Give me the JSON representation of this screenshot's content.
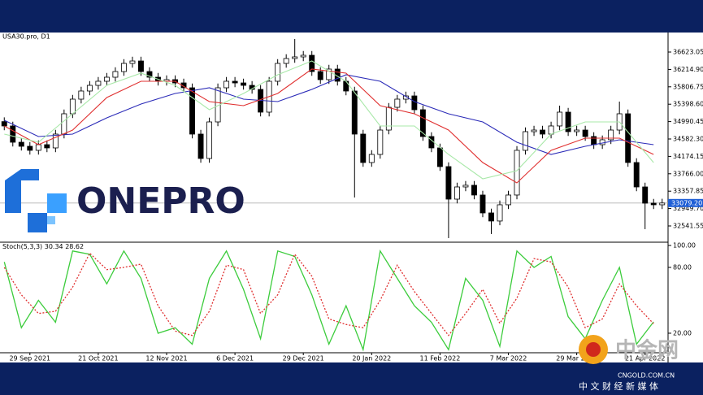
{
  "chart_data": {
    "type": "candlestick",
    "title": "USA30.pro, D1",
    "xlim": [
      -0.5,
      77.5
    ],
    "xticks": [
      {
        "value": 3,
        "label": "29 Sep 2021"
      },
      {
        "value": 11,
        "label": "21 Oct 2021"
      },
      {
        "value": 19,
        "label": "12 Nov 2021"
      },
      {
        "value": 27,
        "label": "6 Dec 2021"
      },
      {
        "value": 35,
        "label": "29 Dec 2021"
      },
      {
        "value": 43,
        "label": "20 Jan 2022"
      },
      {
        "value": 51,
        "label": "11 Feb 2022"
      },
      {
        "value": 59,
        "label": "7 Mar 2022"
      },
      {
        "value": 67,
        "label": "29 Mar 2022"
      },
      {
        "value": 75,
        "label": "21 Apr 2022"
      }
    ],
    "open": [
      34990,
      34888,
      34506,
      34411,
      34316,
      34449,
      34373,
      34697,
      35174,
      35517,
      35708,
      35841,
      35937,
      36032,
      36165,
      36356,
      36413,
      36165,
      36032,
      35937,
      35975,
      35898,
      35784,
      34697,
      34125,
      34983,
      35784,
      35937,
      35898,
      35841,
      35746,
      35212,
      35937,
      36356,
      36471,
      36509,
      36547,
      36165,
      35975,
      36223,
      35937,
      35708,
      34697,
      34030,
      34220,
      34792,
      35326,
      35517,
      35593,
      35269,
      34640,
      34373,
      33934,
      33171,
      33457,
      33496,
      33267,
      32847,
      32657,
      33038,
      33267,
      34316,
      34754,
      34792,
      34697,
      34888,
      35212,
      34754,
      34792,
      34640,
      34449,
      34564,
      34792,
      35174,
      34030,
      33457,
      33076,
      33038
    ],
    "high": [
      35090,
      34988,
      34606,
      34511,
      34549,
      34549,
      34797,
      35274,
      35617,
      35808,
      35941,
      36037,
      36132,
      36265,
      36456,
      36513,
      36513,
      36265,
      36132,
      36075,
      36075,
      35998,
      35884,
      34797,
      35083,
      35884,
      36037,
      36037,
      35998,
      35941,
      35846,
      36037,
      36456,
      36571,
      36928,
      36647,
      36647,
      36265,
      36323,
      36323,
      36037,
      35808,
      34797,
      34320,
      34892,
      35426,
      35617,
      35693,
      35693,
      35369,
      34740,
      34473,
      34034,
      33557,
      33596,
      33596,
      33367,
      32947,
      33138,
      33367,
      34416,
      34854,
      34892,
      34892,
      34988,
      35365,
      35312,
      34892,
      34892,
      34740,
      34664,
      34892,
      35460,
      35274,
      34130,
      33557,
      33176,
      33179
    ],
    "low": [
      34788,
      34406,
      34311,
      34216,
      34216,
      34273,
      34273,
      34597,
      35074,
      35417,
      35608,
      35741,
      35837,
      35932,
      36065,
      36256,
      36065,
      35932,
      35837,
      35837,
      35798,
      35684,
      34597,
      34025,
      34025,
      34883,
      35684,
      35798,
      35741,
      35646,
      35112,
      35112,
      35837,
      36256,
      36371,
      36409,
      36065,
      35875,
      35875,
      35837,
      35608,
      33209,
      33930,
      33930,
      34120,
      34692,
      35226,
      35417,
      35169,
      34540,
      34273,
      33834,
      32256,
      33071,
      33357,
      33167,
      32747,
      32351,
      32557,
      32938,
      33167,
      34216,
      34654,
      34597,
      34597,
      34788,
      34654,
      34654,
      34540,
      34349,
      34349,
      34464,
      34692,
      33930,
      33357,
      32466,
      32938,
      32938
    ],
    "close": [
      34888,
      34506,
      34411,
      34316,
      34449,
      34373,
      34697,
      35174,
      35517,
      35708,
      35841,
      35937,
      36032,
      36165,
      36356,
      36413,
      36165,
      36032,
      35937,
      35975,
      35898,
      35784,
      34697,
      34125,
      34983,
      35784,
      35937,
      35898,
      35841,
      35746,
      35212,
      35937,
      36356,
      36471,
      36509,
      36547,
      36165,
      35975,
      36223,
      35937,
      35708,
      34697,
      34030,
      34220,
      34792,
      35326,
      35517,
      35593,
      35269,
      34640,
      34373,
      33934,
      33171,
      33457,
      33496,
      33267,
      32847,
      32657,
      33038,
      33267,
      34316,
      34754,
      34792,
      34697,
      34888,
      35212,
      34754,
      34792,
      34640,
      34449,
      34564,
      34792,
      35174,
      34030,
      33457,
      33076,
      33038,
      33079.2
    ],
    "ylim": [
      32179,
      37043
    ],
    "yticks": [
      {
        "value": 36623.05,
        "label": "36623.05"
      },
      {
        "value": 36214.9,
        "label": "36214.90"
      },
      {
        "value": 35806.75,
        "label": "35806.75"
      },
      {
        "value": 35398.6,
        "label": "35398.60"
      },
      {
        "value": 34990.45,
        "label": "34990.45"
      },
      {
        "value": 34582.3,
        "label": "34582.30"
      },
      {
        "value": 34174.15,
        "label": "34174.15"
      },
      {
        "value": 33766,
        "label": "33766.00"
      },
      {
        "value": 33357.85,
        "label": "33357.85"
      },
      {
        "value": 32949.7,
        "label": "32949.70"
      },
      {
        "value": 32541.55,
        "label": "32541.55"
      }
    ],
    "current_price": {
      "value": 33079.2,
      "label": "33079.20",
      "color": "#1f5fd6"
    },
    "moving_averages": {
      "x": [
        0,
        4,
        8,
        12,
        16,
        20,
        24,
        28,
        32,
        36,
        40,
        44,
        48,
        52,
        56,
        60,
        64,
        68,
        72,
        76
      ],
      "series": [
        {
          "color": "#2b2bb8",
          "values": [
            35021,
            34640,
            34697,
            35078,
            35402,
            35650,
            35784,
            35517,
            35460,
            35746,
            36089,
            35937,
            35460,
            35174,
            34983,
            34506,
            34220,
            34411,
            34564,
            34449
          ]
        },
        {
          "color": "#e03030",
          "values": [
            34888,
            34449,
            34792,
            35555,
            35937,
            35937,
            35460,
            35364,
            35650,
            36223,
            36127,
            35364,
            35174,
            34792,
            34030,
            33553,
            34316,
            34602,
            34602,
            34220
          ]
        },
        {
          "color": "#a8e8a8",
          "values": [
            34697,
            34506,
            35174,
            35841,
            36127,
            35841,
            35269,
            35650,
            36089,
            36413,
            35937,
            34888,
            34888,
            34220,
            33648,
            33839,
            34697,
            34983,
            34983,
            34030
          ]
        }
      ]
    },
    "oscillator": {
      "type": "line",
      "title": "Stoch(5,3,3)",
      "x": [
        0,
        2,
        4,
        6,
        8,
        10,
        12,
        14,
        16,
        18,
        20,
        22,
        24,
        26,
        28,
        30,
        32,
        34,
        36,
        38,
        40,
        42,
        44,
        46,
        48,
        50,
        52,
        54,
        56,
        58,
        60,
        62,
        64,
        66,
        68,
        70,
        72,
        74,
        76
      ],
      "ylim": [
        2.2,
        101.5
      ],
      "yticks": [
        {
          "value": 100,
          "label": "100.00"
        },
        {
          "value": 80,
          "label": "80.00"
        },
        {
          "value": 20,
          "label": "20.00"
        }
      ],
      "series": [
        {
          "color": "#3ccc3c",
          "values": [
            85,
            25,
            50,
            30,
            95,
            92,
            65,
            95,
            70,
            20,
            25,
            10,
            70,
            95,
            60,
            15,
            95,
            90,
            55,
            10,
            45,
            5,
            95,
            70,
            45,
            30,
            5,
            70,
            50,
            8,
            95,
            80,
            90,
            35,
            15,
            50,
            80,
            10,
            30.34
          ]
        },
        {
          "color": "#e03030",
          "dashed": true,
          "values": [
            80,
            55,
            38,
            40,
            62,
            93,
            78,
            80,
            83,
            45,
            22,
            18,
            40,
            82,
            78,
            38,
            55,
            92,
            72,
            33,
            28,
            25,
            50,
            82,
            58,
            38,
            18,
            38,
            60,
            29,
            52,
            88,
            85,
            62,
            25,
            33,
            65,
            45,
            28.62
          ]
        }
      ]
    }
  },
  "logo": {
    "text": "ONEPRO"
  },
  "watermark": {
    "brand": "中金网",
    "site": "CNGOLD.COM.CN",
    "slogan": "中 文 财 经 新 媒 体"
  }
}
